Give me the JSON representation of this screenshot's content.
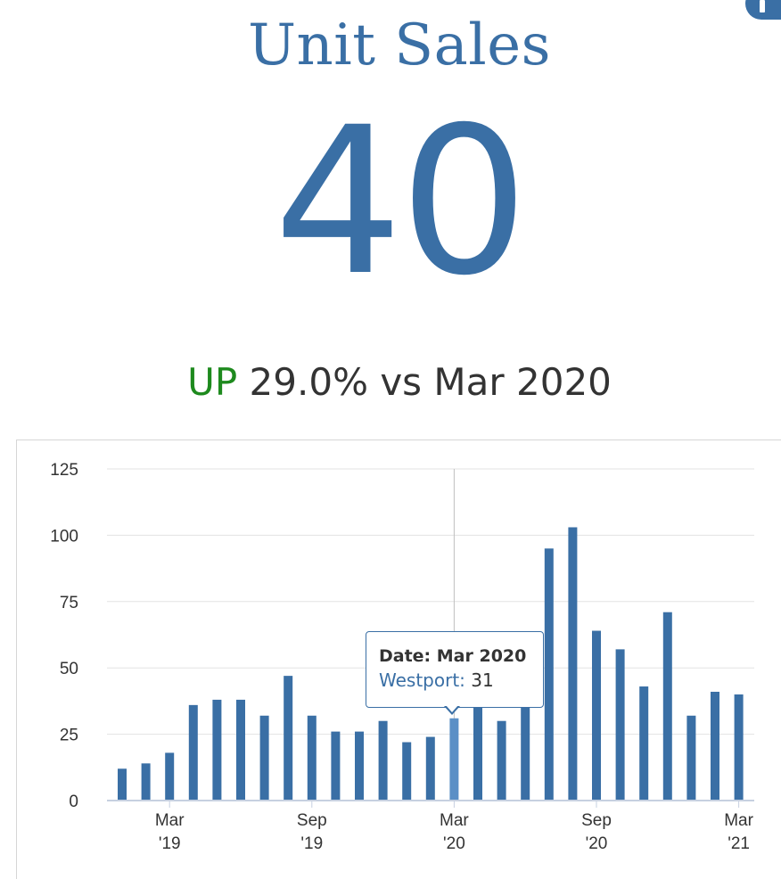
{
  "header": {
    "title": "Unit Sales",
    "value": "40",
    "comparison": {
      "direction": "UP",
      "text": "29.0% vs Mar 2020"
    },
    "info_icon": "info-icon"
  },
  "colors": {
    "primary": "#3a6fa5",
    "up": "#1e8a1e",
    "text": "#333333",
    "grid": "#e3e3e3",
    "hover_bar": "#5b8fc6"
  },
  "tooltip": {
    "date_label": "Date: Mar 2020",
    "series_label": "Westport:",
    "value": "31"
  },
  "chart_data": {
    "type": "bar",
    "title": "",
    "xlabel": "",
    "ylabel": "",
    "ylim": [
      0,
      125
    ],
    "y_ticks": [
      "0",
      "25",
      "50",
      "75",
      "100",
      "125"
    ],
    "grid": true,
    "legend": "none",
    "categories": [
      "Jan 2019",
      "Feb 2019",
      "Mar 2019",
      "Apr 2019",
      "May 2019",
      "Jun 2019",
      "Jul 2019",
      "Aug 2019",
      "Sep 2019",
      "Oct 2019",
      "Nov 2019",
      "Dec 2019",
      "Jan 2020",
      "Feb 2020",
      "Mar 2020",
      "Apr 2020",
      "May 2020",
      "Jun 2020",
      "Jul 2020",
      "Aug 2020",
      "Sep 2020",
      "Oct 2020",
      "Nov 2020",
      "Dec 2020",
      "Jan 2021",
      "Feb 2021",
      "Mar 2021"
    ],
    "series": [
      {
        "name": "Westport",
        "values": [
          12,
          14,
          18,
          36,
          38,
          38,
          32,
          47,
          32,
          26,
          26,
          30,
          22,
          24,
          31,
          38,
          30,
          38,
          95,
          103,
          64,
          57,
          43,
          71,
          32,
          41,
          40
        ]
      }
    ],
    "highlighted_category": "Mar 2020",
    "x_tick_labels": [
      {
        "category": "Mar 2019",
        "line1": "Mar",
        "line2": "'19"
      },
      {
        "category": "Sep 2019",
        "line1": "Sep",
        "line2": "'19"
      },
      {
        "category": "Mar 2020",
        "line1": "Mar",
        "line2": "'20"
      },
      {
        "category": "Sep 2020",
        "line1": "Sep",
        "line2": "'20"
      },
      {
        "category": "Mar 2021",
        "line1": "Mar",
        "line2": "'21"
      }
    ]
  }
}
